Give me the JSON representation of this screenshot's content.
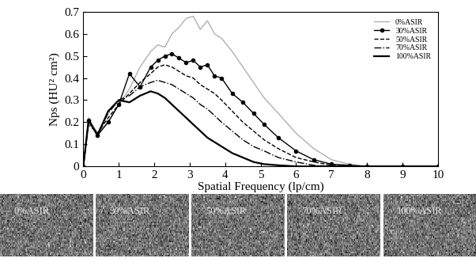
{
  "chart_data": {
    "type": "line",
    "x_label": "Spatial Frequency (lp/cm)",
    "y_label": "Nps (HU² cm²)",
    "x": [
      0,
      0.15,
      0.4,
      0.7,
      1.0,
      1.3,
      1.6,
      1.9,
      2.1,
      2.3,
      2.5,
      2.7,
      2.9,
      3.1,
      3.3,
      3.5,
      3.7,
      3.9,
      4.2,
      4.5,
      4.8,
      5.1,
      5.5,
      6.0,
      6.5,
      7.0,
      7.5,
      8.0,
      9.0,
      10.0
    ],
    "series": [
      {
        "name": "0%ASIR",
        "color": "#b0b0b0",
        "line_style": "solid",
        "marker": "none",
        "values": [
          0,
          0.22,
          0.15,
          0.2,
          0.28,
          0.35,
          0.45,
          0.52,
          0.55,
          0.54,
          0.6,
          0.63,
          0.67,
          0.68,
          0.62,
          0.66,
          0.6,
          0.58,
          0.52,
          0.45,
          0.38,
          0.31,
          0.24,
          0.15,
          0.08,
          0.03,
          0.01,
          0.0,
          0.0,
          0.0
        ]
      },
      {
        "name": "30%ASIR",
        "color": "#000000",
        "line_style": "solid",
        "marker": "dot",
        "values": [
          0,
          0.21,
          0.14,
          0.2,
          0.28,
          0.42,
          0.36,
          0.45,
          0.48,
          0.5,
          0.51,
          0.49,
          0.47,
          0.48,
          0.45,
          0.46,
          0.41,
          0.4,
          0.33,
          0.29,
          0.24,
          0.19,
          0.13,
          0.07,
          0.03,
          0.01,
          0.005,
          0,
          0,
          0
        ]
      },
      {
        "name": "50%ASIR",
        "color": "#000000",
        "line_style": "dashed",
        "marker": "none",
        "values": [
          0,
          0.2,
          0.15,
          0.22,
          0.28,
          0.33,
          0.38,
          0.42,
          0.45,
          0.46,
          0.45,
          0.43,
          0.41,
          0.4,
          0.37,
          0.35,
          0.33,
          0.3,
          0.25,
          0.2,
          0.16,
          0.12,
          0.08,
          0.04,
          0.02,
          0.005,
          0,
          0,
          0,
          0
        ]
      },
      {
        "name": "70%ASIR",
        "color": "#000000",
        "line_style": "dashdot",
        "marker": "none",
        "values": [
          0,
          0.19,
          0.15,
          0.24,
          0.3,
          0.32,
          0.36,
          0.38,
          0.39,
          0.38,
          0.37,
          0.35,
          0.33,
          0.31,
          0.28,
          0.26,
          0.23,
          0.2,
          0.16,
          0.12,
          0.09,
          0.07,
          0.04,
          0.02,
          0.005,
          0,
          0,
          0,
          0,
          0
        ]
      },
      {
        "name": "100%ASIR",
        "color": "#000000",
        "line_style": "solid",
        "marker": "none",
        "values": [
          0,
          0.21,
          0.14,
          0.25,
          0.3,
          0.29,
          0.32,
          0.34,
          0.33,
          0.31,
          0.28,
          0.25,
          0.22,
          0.19,
          0.16,
          0.13,
          0.11,
          0.09,
          0.06,
          0.04,
          0.02,
          0.01,
          0.005,
          0,
          0,
          0,
          0,
          0,
          0,
          0
        ]
      }
    ],
    "xlim": [
      0,
      10
    ],
    "xticks": [
      0,
      1,
      2,
      3,
      4,
      5,
      6,
      7,
      8,
      9,
      10
    ],
    "ylim": [
      0,
      0.7
    ],
    "yticks": [
      0,
      0.1,
      0.2,
      0.3,
      0.4,
      0.5,
      0.6,
      0.7
    ],
    "legend": "upper right",
    "image_labels": [
      "0%ASIR",
      "30%ASIR",
      "50%ASIR",
      "70%ASIR",
      "100%ASIR"
    ]
  }
}
